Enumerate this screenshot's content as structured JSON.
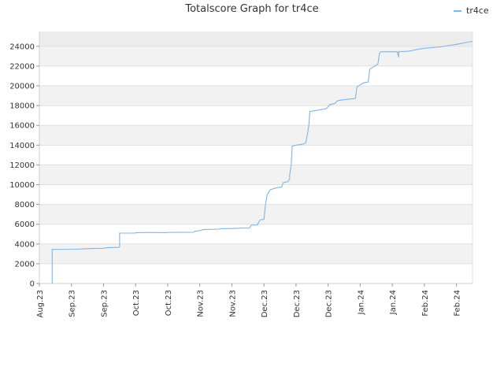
{
  "chart_data": {
    "type": "line",
    "title": "Totalscore Graph for tr4ce",
    "xlabel": "",
    "ylabel": "",
    "x_tick_labels": [
      "Aug.23",
      "Sep.23",
      "Sep.23",
      "Oct.23",
      "Oct.23",
      "Nov.23",
      "Nov.23",
      "Dec.23",
      "Dec.23",
      "Dec.23",
      "Jan.24",
      "Jan.24",
      "Feb.24",
      "Feb.24"
    ],
    "y_tick_labels": [
      "0",
      "2000",
      "4000",
      "6000",
      "8000",
      "10000",
      "12000",
      "14000",
      "16000",
      "18000",
      "20000",
      "22000",
      "24000"
    ],
    "ylim": [
      0,
      25500
    ],
    "xlim": [
      0,
      13.5
    ],
    "grid": true,
    "legend_position": "top-right",
    "series": [
      {
        "name": "tr4ce",
        "color": "#7cb5ec",
        "points": [
          [
            0.4,
            0
          ],
          [
            0.4,
            3450
          ],
          [
            1.1,
            3470
          ],
          [
            1.5,
            3520
          ],
          [
            1.6,
            3540
          ],
          [
            2.0,
            3560
          ],
          [
            2.1,
            3620
          ],
          [
            2.45,
            3650
          ],
          [
            2.5,
            3700
          ],
          [
            2.5,
            5100
          ],
          [
            3.0,
            5110
          ],
          [
            3.0,
            5150
          ],
          [
            3.5,
            5160
          ],
          [
            3.95,
            5150
          ],
          [
            4.0,
            5170
          ],
          [
            4.8,
            5180
          ],
          [
            4.85,
            5300
          ],
          [
            5.0,
            5350
          ],
          [
            5.1,
            5450
          ],
          [
            5.6,
            5500
          ],
          [
            5.65,
            5550
          ],
          [
            6.0,
            5560
          ],
          [
            6.25,
            5600
          ],
          [
            6.55,
            5620
          ],
          [
            6.6,
            5900
          ],
          [
            6.8,
            5920
          ],
          [
            6.85,
            6300
          ],
          [
            6.9,
            6450
          ],
          [
            7.0,
            6500
          ],
          [
            7.05,
            8000
          ],
          [
            7.1,
            9000
          ],
          [
            7.2,
            9500
          ],
          [
            7.4,
            9700
          ],
          [
            7.55,
            9750
          ],
          [
            7.6,
            10200
          ],
          [
            7.75,
            10300
          ],
          [
            7.8,
            10600
          ],
          [
            7.8,
            11000
          ],
          [
            7.85,
            12000
          ],
          [
            7.88,
            13900
          ],
          [
            8.0,
            14000
          ],
          [
            8.2,
            14100
          ],
          [
            8.3,
            14200
          ],
          [
            8.35,
            15000
          ],
          [
            8.4,
            16000
          ],
          [
            8.43,
            17400
          ],
          [
            8.6,
            17500
          ],
          [
            8.8,
            17600
          ],
          [
            8.95,
            17700
          ],
          [
            9.0,
            17900
          ],
          [
            9.05,
            18100
          ],
          [
            9.2,
            18200
          ],
          [
            9.3,
            18500
          ],
          [
            9.5,
            18600
          ],
          [
            9.8,
            18700
          ],
          [
            9.85,
            18750
          ],
          [
            9.9,
            19900
          ],
          [
            10.0,
            20100
          ],
          [
            10.1,
            20300
          ],
          [
            10.25,
            20400
          ],
          [
            10.3,
            21700
          ],
          [
            10.4,
            21900
          ],
          [
            10.5,
            22100
          ],
          [
            10.55,
            22200
          ],
          [
            10.6,
            23300
          ],
          [
            10.65,
            23450
          ],
          [
            11.1,
            23450
          ],
          [
            11.15,
            23450
          ],
          [
            11.2,
            22900
          ],
          [
            11.2,
            23450
          ],
          [
            11.5,
            23500
          ],
          [
            11.8,
            23700
          ],
          [
            12.0,
            23800
          ],
          [
            12.5,
            23950
          ],
          [
            13.0,
            24200
          ],
          [
            13.5,
            24500
          ]
        ]
      }
    ]
  }
}
